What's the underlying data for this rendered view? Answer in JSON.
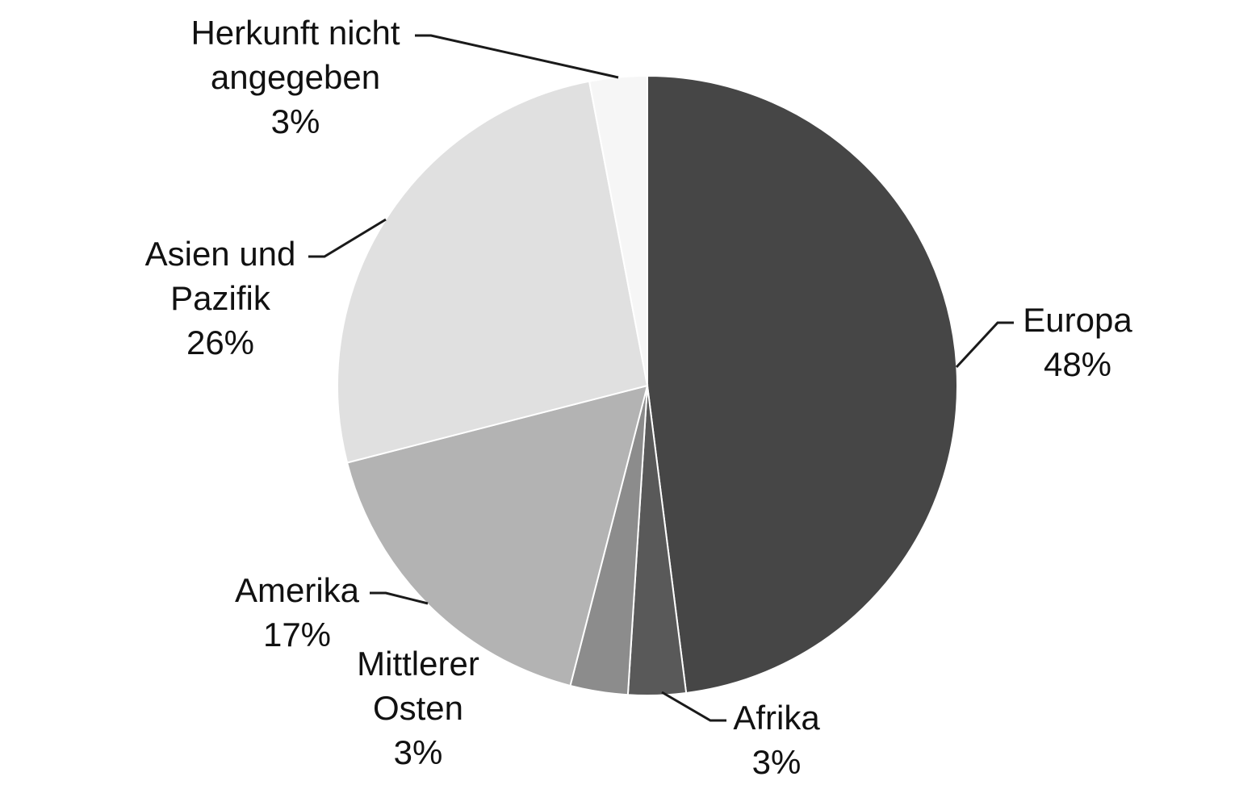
{
  "chart_data": {
    "type": "pie",
    "title": "",
    "start_angle_deg": 0,
    "direction": "clockwise",
    "legend": "none",
    "slices": [
      {
        "name": "Europa",
        "value": 48,
        "label_pct": "48%",
        "color": "#464646"
      },
      {
        "name": "Afrika",
        "value": 3,
        "label_pct": "3%",
        "color": "#595959"
      },
      {
        "name": "Mittlerer Osten",
        "value": 3,
        "label_pct": "3%",
        "color": "#8c8c8c"
      },
      {
        "name": "Amerika",
        "value": 17,
        "label_pct": "17%",
        "color": "#b3b3b3"
      },
      {
        "name": "Asien und Pazifik",
        "value": 26,
        "label_pct": "26%",
        "color": "#e0e0e0"
      },
      {
        "name": "Herkunft nicht angegeben",
        "value": 3,
        "label_pct": "3%",
        "color": "#f6f6f6"
      }
    ],
    "label_lines": [
      [
        "Europa",
        "48%"
      ],
      [
        "Afrika",
        "3%"
      ],
      [
        "Mittlerer",
        "Osten",
        "3%"
      ],
      [
        "Amerika",
        "17%"
      ],
      [
        "Asien und",
        "Pazifik",
        "26%"
      ],
      [
        "Herkunft nicht",
        "angegeben",
        "3%"
      ]
    ]
  }
}
